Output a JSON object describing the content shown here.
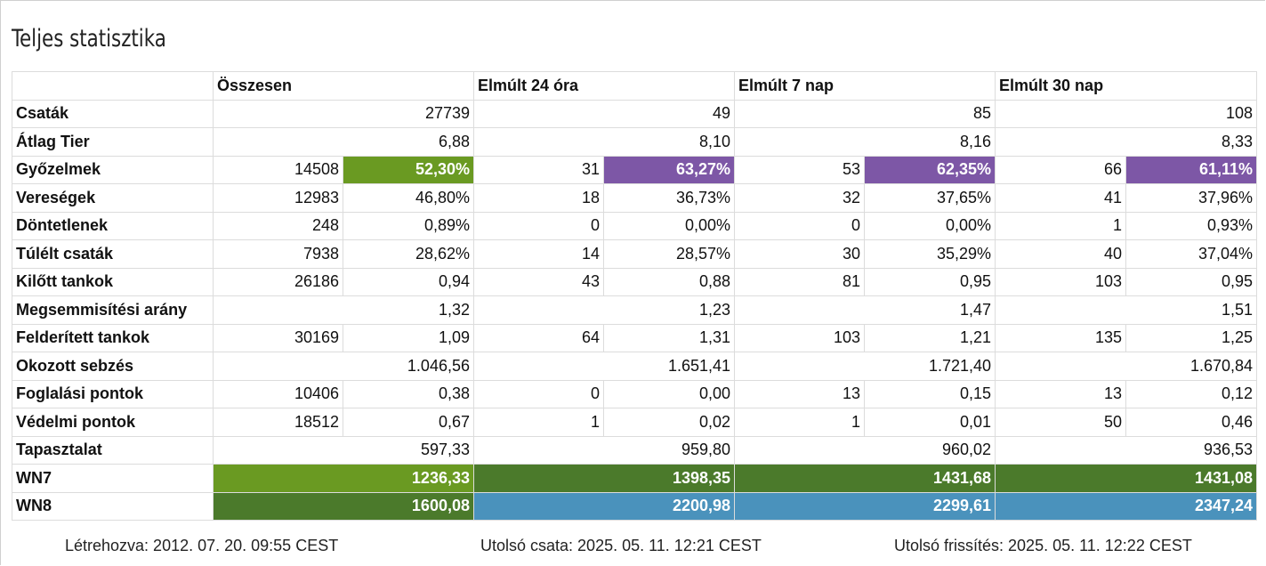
{
  "page": {
    "title": "Teljes statisztika"
  },
  "colors": {
    "green_light": "#6a9a22",
    "green_dark": "#4b7a2b",
    "purple": "#7d57a6",
    "blue": "#4a92bc"
  },
  "headers": [
    "",
    "Összesen",
    "Elmúlt 24 óra",
    "Elmúlt 7 nap",
    "Elmúlt 30 nap"
  ],
  "rows": [
    {
      "label": "Csaták",
      "cells": [
        {
          "span": 2,
          "value": "27739"
        },
        {
          "span": 2,
          "value": "49"
        },
        {
          "span": 2,
          "value": "85"
        },
        {
          "span": 2,
          "value": "108"
        }
      ]
    },
    {
      "label": "Átlag Tier",
      "cells": [
        {
          "span": 2,
          "value": "6,88"
        },
        {
          "span": 2,
          "value": "8,10"
        },
        {
          "span": 2,
          "value": "8,16"
        },
        {
          "span": 2,
          "value": "8,33"
        }
      ]
    },
    {
      "label": "Győzelmek",
      "cells": [
        {
          "value": "14508"
        },
        {
          "value": "52,30%",
          "color": "#6a9a22"
        },
        {
          "value": "31"
        },
        {
          "value": "63,27%",
          "color": "#7d57a6"
        },
        {
          "value": "53"
        },
        {
          "value": "62,35%",
          "color": "#7d57a6"
        },
        {
          "value": "66"
        },
        {
          "value": "61,11%",
          "color": "#7d57a6"
        }
      ]
    },
    {
      "label": "Vereségek",
      "cells": [
        {
          "value": "12983"
        },
        {
          "value": "46,80%"
        },
        {
          "value": "18"
        },
        {
          "value": "36,73%"
        },
        {
          "value": "32"
        },
        {
          "value": "37,65%"
        },
        {
          "value": "41"
        },
        {
          "value": "37,96%"
        }
      ]
    },
    {
      "label": "Döntetlenek",
      "cells": [
        {
          "value": "248"
        },
        {
          "value": "0,89%"
        },
        {
          "value": "0"
        },
        {
          "value": "0,00%"
        },
        {
          "value": "0"
        },
        {
          "value": "0,00%"
        },
        {
          "value": "1"
        },
        {
          "value": "0,93%"
        }
      ]
    },
    {
      "label": "Túlélt csaták",
      "cells": [
        {
          "value": "7938"
        },
        {
          "value": "28,62%"
        },
        {
          "value": "14"
        },
        {
          "value": "28,57%"
        },
        {
          "value": "30"
        },
        {
          "value": "35,29%"
        },
        {
          "value": "40"
        },
        {
          "value": "37,04%"
        }
      ]
    },
    {
      "label": "Kilőtt tankok",
      "cells": [
        {
          "value": "26186"
        },
        {
          "value": "0,94"
        },
        {
          "value": "43"
        },
        {
          "value": "0,88"
        },
        {
          "value": "81"
        },
        {
          "value": "0,95"
        },
        {
          "value": "103"
        },
        {
          "value": "0,95"
        }
      ]
    },
    {
      "label": "Megsemmisítési arány",
      "cells": [
        {
          "span": 2,
          "value": "1,32"
        },
        {
          "span": 2,
          "value": "1,23"
        },
        {
          "span": 2,
          "value": "1,47"
        },
        {
          "span": 2,
          "value": "1,51"
        }
      ]
    },
    {
      "label": "Felderített tankok",
      "cells": [
        {
          "value": "30169"
        },
        {
          "value": "1,09"
        },
        {
          "value": "64"
        },
        {
          "value": "1,31"
        },
        {
          "value": "103"
        },
        {
          "value": "1,21"
        },
        {
          "value": "135"
        },
        {
          "value": "1,25"
        }
      ]
    },
    {
      "label": "Okozott sebzés",
      "cells": [
        {
          "span": 2,
          "value": "1.046,56"
        },
        {
          "span": 2,
          "value": "1.651,41"
        },
        {
          "span": 2,
          "value": "1.721,40"
        },
        {
          "span": 2,
          "value": "1.670,84"
        }
      ]
    },
    {
      "label": "Foglalási pontok",
      "cells": [
        {
          "value": "10406"
        },
        {
          "value": "0,38"
        },
        {
          "value": "0"
        },
        {
          "value": "0,00"
        },
        {
          "value": "13"
        },
        {
          "value": "0,15"
        },
        {
          "value": "13"
        },
        {
          "value": "0,12"
        }
      ]
    },
    {
      "label": "Védelmi pontok",
      "cells": [
        {
          "value": "18512"
        },
        {
          "value": "0,67"
        },
        {
          "value": "1"
        },
        {
          "value": "0,02"
        },
        {
          "value": "1"
        },
        {
          "value": "0,01"
        },
        {
          "value": "50"
        },
        {
          "value": "0,46"
        }
      ]
    },
    {
      "label": "Tapasztalat",
      "cells": [
        {
          "span": 2,
          "value": "597,33"
        },
        {
          "span": 2,
          "value": "959,80"
        },
        {
          "span": 2,
          "value": "960,02"
        },
        {
          "span": 2,
          "value": "936,53"
        }
      ]
    },
    {
      "label": "WN7",
      "cells": [
        {
          "span": 2,
          "value": "1236,33",
          "color": "#6a9a22"
        },
        {
          "span": 2,
          "value": "1398,35",
          "color": "#4b7a2b"
        },
        {
          "span": 2,
          "value": "1431,68",
          "color": "#4b7a2b"
        },
        {
          "span": 2,
          "value": "1431,08",
          "color": "#4b7a2b"
        }
      ]
    },
    {
      "label": "WN8",
      "cells": [
        {
          "span": 2,
          "value": "1600,08",
          "color": "#4b7a2b"
        },
        {
          "span": 2,
          "value": "2200,98",
          "color": "#4a92bc"
        },
        {
          "span": 2,
          "value": "2299,61",
          "color": "#4a92bc"
        },
        {
          "span": 2,
          "value": "2347,24",
          "color": "#4a92bc"
        }
      ]
    }
  ],
  "footer": {
    "created": "Létrehozva: 2012. 07. 20. 09:55 CEST",
    "last_battle": "Utolsó csata: 2025. 05. 11. 12:21 CEST",
    "last_update": "Utolsó frissítés: 2025. 05. 11. 12:22 CEST"
  }
}
